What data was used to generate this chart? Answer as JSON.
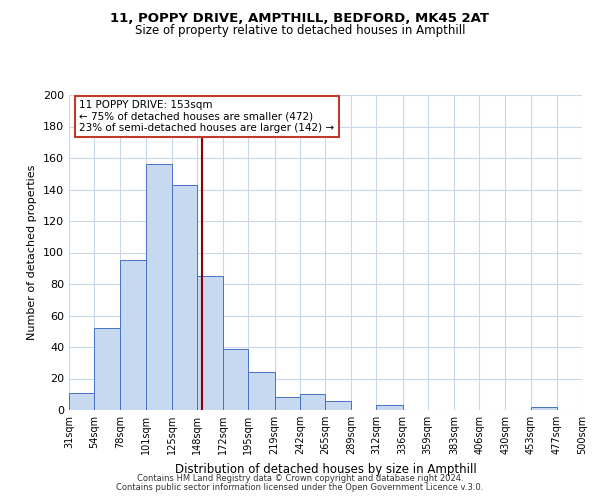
{
  "title": "11, POPPY DRIVE, AMPTHILL, BEDFORD, MK45 2AT",
  "subtitle": "Size of property relative to detached houses in Ampthill",
  "xlabel": "Distribution of detached houses by size in Ampthill",
  "ylabel": "Number of detached properties",
  "bin_labels": [
    "31sqm",
    "54sqm",
    "78sqm",
    "101sqm",
    "125sqm",
    "148sqm",
    "172sqm",
    "195sqm",
    "219sqm",
    "242sqm",
    "265sqm",
    "289sqm",
    "312sqm",
    "336sqm",
    "359sqm",
    "383sqm",
    "406sqm",
    "430sqm",
    "453sqm",
    "477sqm",
    "500sqm"
  ],
  "bar_values": [
    11,
    52,
    95,
    156,
    143,
    85,
    39,
    24,
    8,
    10,
    6,
    0,
    3,
    0,
    0,
    0,
    0,
    0,
    2,
    0,
    0
  ],
  "bar_color": "#c6d9f1",
  "bar_edge_color": "#4472c4",
  "ylim": [
    0,
    200
  ],
  "yticks": [
    0,
    20,
    40,
    60,
    80,
    100,
    120,
    140,
    160,
    180,
    200
  ],
  "property_line_color": "#8b0000",
  "annotation_title": "11 POPPY DRIVE: 153sqm",
  "annotation_line1": "← 75% of detached houses are smaller (472)",
  "annotation_line2": "23% of semi-detached houses are larger (142) →",
  "annotation_box_color": "#ffffff",
  "annotation_box_edge": "#c0392b",
  "footer1": "Contains HM Land Registry data © Crown copyright and database right 2024.",
  "footer2": "Contains public sector information licensed under the Open Government Licence v.3.0.",
  "background_color": "#ffffff",
  "grid_color": "#c8d8e8",
  "bin_edges": [
    31,
    54,
    78,
    101,
    125,
    148,
    172,
    195,
    219,
    242,
    265,
    289,
    312,
    336,
    359,
    383,
    406,
    430,
    453,
    477,
    500
  ]
}
